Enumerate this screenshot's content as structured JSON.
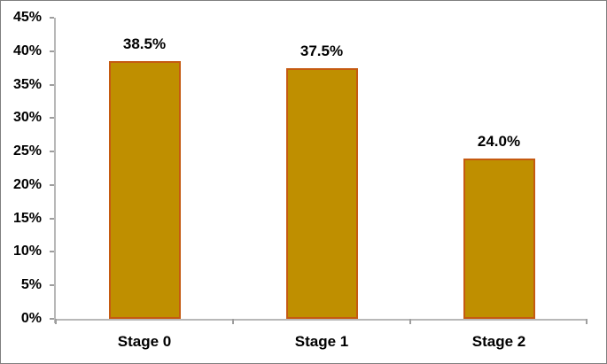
{
  "chart_data": {
    "type": "bar",
    "title": "",
    "xlabel": "",
    "ylabel": "",
    "categories": [
      "Stage 0",
      "Stage 1",
      "Stage 2"
    ],
    "values": [
      38.5,
      37.5,
      24.0
    ],
    "value_labels": [
      "38.5%",
      "37.5%",
      "24.0%"
    ],
    "ylim": [
      0,
      45
    ],
    "ytick_step": 5,
    "ytick_labels": [
      "0%",
      "5%",
      "10%",
      "15%",
      "20%",
      "25%",
      "30%",
      "35%",
      "40%",
      "45%"
    ],
    "grid": false,
    "legend": false,
    "colors": {
      "bar_fill": "#BF8F00",
      "bar_border": "#C55A11",
      "axis_line": "#B8B8B8",
      "tick_mark": "#9E9E9E",
      "text": "#000000",
      "frame_border": "#7F7F7F",
      "background": "#FFFFFF"
    }
  }
}
